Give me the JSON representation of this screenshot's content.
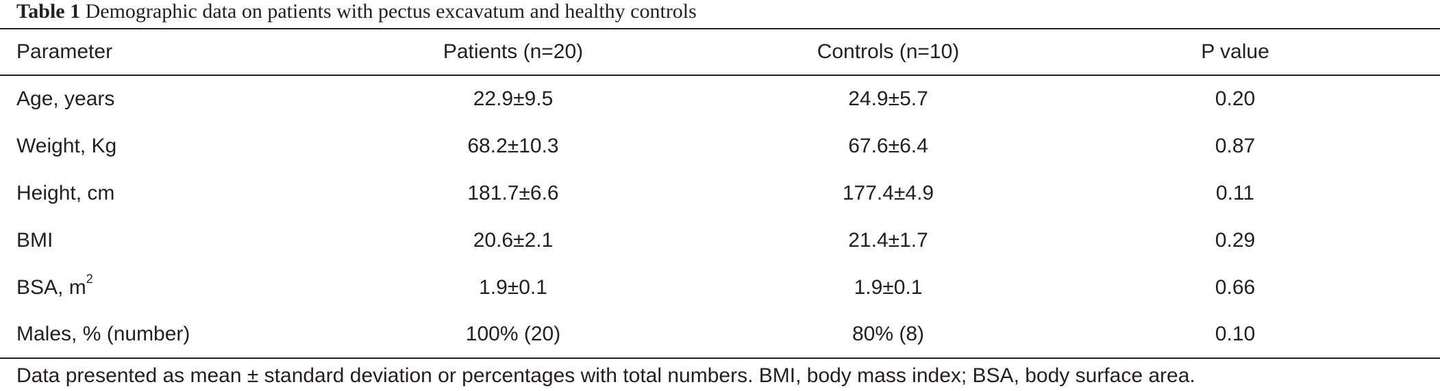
{
  "caption": {
    "label": "Table 1",
    "text": "Demographic data on patients with pectus excavatum and healthy controls"
  },
  "table": {
    "headers": [
      "Parameter",
      "Patients (n=20)",
      "Controls (n=10)",
      "P value"
    ],
    "rows": [
      {
        "parameter": "Age, years",
        "patients": "22.9±9.5",
        "controls": "24.9±5.7",
        "p_value": "0.20"
      },
      {
        "parameter": "Weight, Kg",
        "patients": "68.2±10.3",
        "controls": "67.6±6.4",
        "p_value": "0.87"
      },
      {
        "parameter": "Height, cm",
        "patients": "181.7±6.6",
        "controls": "177.4±4.9",
        "p_value": "0.11"
      },
      {
        "parameter": "BMI",
        "patients": "20.6±2.1",
        "controls": "21.4±1.7",
        "p_value": "0.29"
      },
      {
        "parameter": "BSA, m",
        "parameter_sup": "2",
        "patients": "1.9±0.1",
        "controls": "1.9±0.1",
        "p_value": "0.66"
      },
      {
        "parameter": "Males, % (number)",
        "patients": "100% (20)",
        "controls": "80% (8)",
        "p_value": "0.10"
      }
    ]
  },
  "footnote": "Data presented as mean ± standard deviation or percentages with total numbers. BMI, body mass index; BSA, body surface area."
}
